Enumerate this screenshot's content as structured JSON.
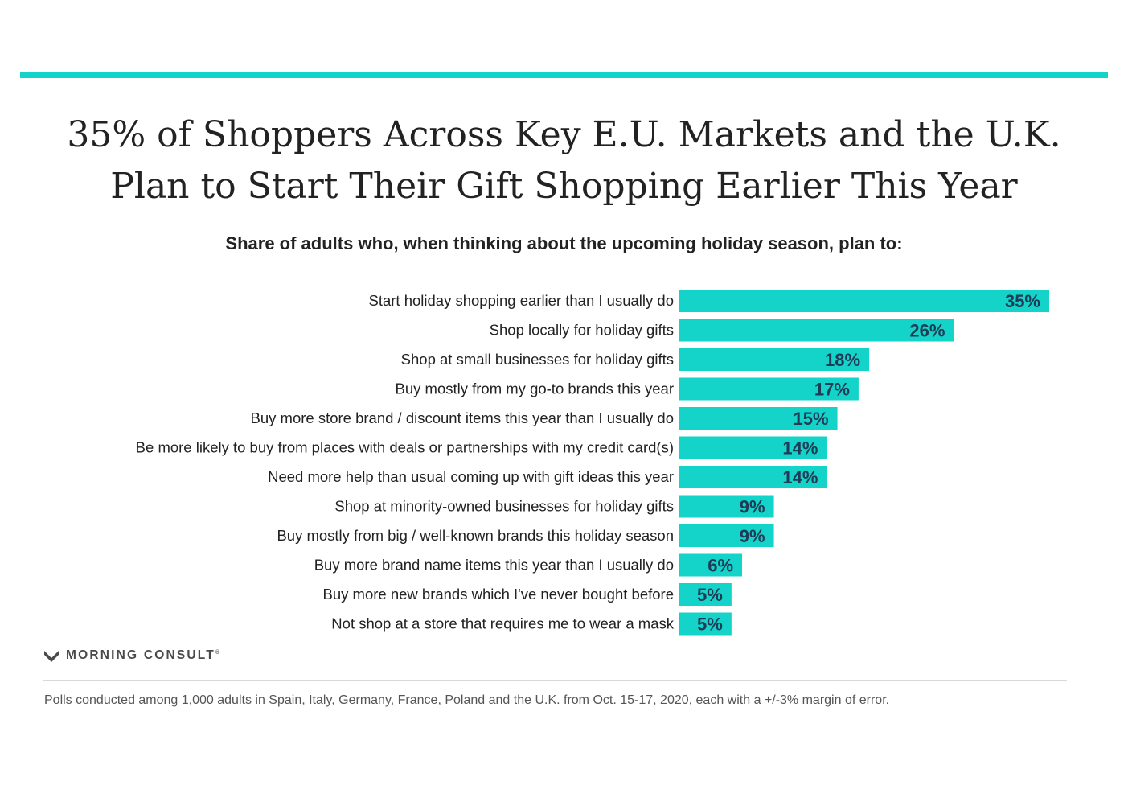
{
  "colors": {
    "accent": "#14d3c8",
    "value_text": "#1f3b57",
    "title": "#222222"
  },
  "header": {
    "title_line1": "35% of Shoppers Across Key E.U. Markets and the U.K.",
    "title_line2": "Plan to Start Their Gift Shopping Earlier This Year",
    "subtitle": "Share of adults who, when thinking about the upcoming holiday season, plan to:"
  },
  "chart_data": {
    "type": "bar",
    "orientation": "horizontal",
    "title": "Share of adults who, when thinking about the upcoming holiday season, plan to:",
    "xlabel": "",
    "ylabel": "",
    "xlim": [
      0,
      35
    ],
    "value_suffix": "%",
    "categories": [
      "Start holiday shopping earlier than I usually do",
      "Shop locally for holiday gifts",
      "Shop at small businesses for holiday gifts",
      "Buy mostly from my go-to brands this year",
      "Buy more store brand / discount items this year than I usually do",
      "Be more likely to buy from places with deals or partnerships with my credit card(s)",
      "Need more help than usual coming up with gift ideas this year",
      "Shop at minority-owned businesses for holiday gifts",
      "Buy mostly from big / well-known brands this holiday season",
      "Buy more brand name items this year than I usually do",
      "Buy more new brands which I've never bought before",
      "Not shop at a store that requires me to wear a mask"
    ],
    "values": [
      35,
      26,
      18,
      17,
      15,
      14,
      14,
      9,
      9,
      6,
      5,
      5
    ],
    "value_labels": [
      "35%",
      "26%",
      "18%",
      "17%",
      "15%",
      "14%",
      "14%",
      "9%",
      "9%",
      "6%",
      "5%",
      "5%"
    ]
  },
  "brand": {
    "logo_text": "MORNING CONSULT",
    "logo_icon": "m-chevron-icon",
    "registered": "®"
  },
  "footnote": "Polls conducted among 1,000 adults in Spain, Italy, Germany, France, Poland and the U.K. from Oct. 15-17, 2020, each with a +/-3% margin of error."
}
